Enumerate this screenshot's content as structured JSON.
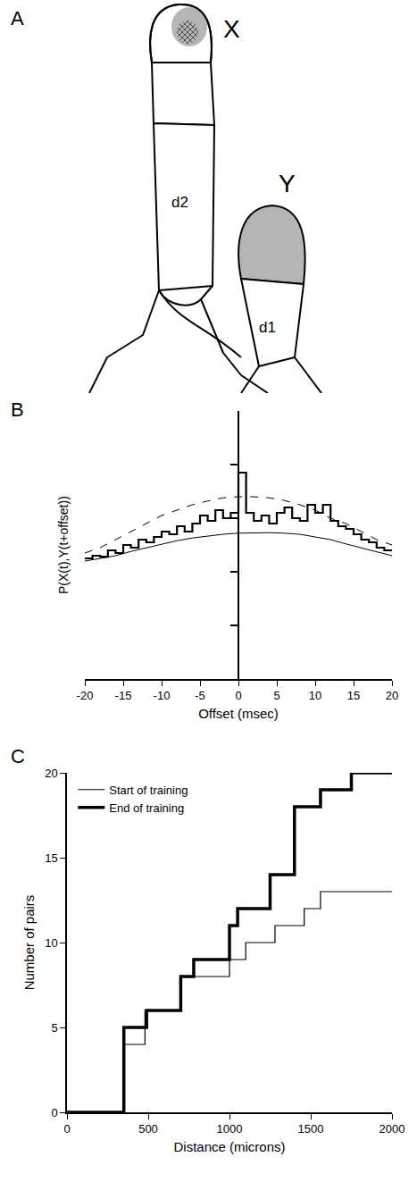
{
  "diagram": {
    "label": "A",
    "nodes": [
      {
        "label": "X"
      },
      {
        "label": "Y"
      },
      {
        "label": "d2"
      },
      {
        "label": "d1"
      }
    ]
  },
  "chart_data": [
    {
      "label": "B",
      "type": "line",
      "y_label": "P(X(t),Y(t+offset))",
      "x_label": "Offset (msec)",
      "xlim": [
        -20,
        20
      ],
      "xticks": [
        -20,
        -15,
        -10,
        -5,
        0,
        5,
        10,
        15,
        20
      ],
      "ylim": [
        0,
        5
      ],
      "yticks": [
        1,
        2,
        3,
        4
      ],
      "tick_labels": "x",
      "grid": false,
      "series": [
        {
          "type": "histogram",
          "color": "#000000",
          "line_style": "solid",
          "bins": [
            -20,
            -19,
            -18,
            -17,
            -16,
            -15,
            -14,
            -13,
            -12,
            -11,
            -10,
            -9,
            -8,
            -7,
            -6,
            -5,
            -4,
            -3,
            -2,
            -1,
            0,
            1,
            2,
            3,
            4,
            5,
            6,
            7,
            8,
            9,
            10,
            11,
            12,
            13,
            14,
            15,
            16,
            17,
            18,
            19,
            20
          ],
          "values": [
            2.25,
            2.3,
            2.28,
            2.4,
            2.35,
            2.5,
            2.45,
            2.6,
            2.55,
            2.65,
            2.75,
            2.7,
            2.85,
            2.75,
            2.9,
            3.05,
            2.95,
            3.15,
            3.0,
            3.1,
            3.85,
            3.1,
            2.95,
            3.05,
            2.9,
            3.1,
            3.2,
            3.0,
            2.95,
            3.25,
            3.1,
            3.25,
            2.95,
            2.85,
            2.8,
            2.7,
            2.6,
            2.55,
            2.45,
            2.4
          ]
        },
        {
          "type": "line",
          "color": "#000000",
          "line_style": "dashed",
          "x": [
            -20,
            -18,
            -16,
            -14,
            -12,
            -10,
            -8,
            -6,
            -4,
            -2,
            0,
            2,
            4,
            6,
            8,
            10,
            12,
            14,
            16,
            18,
            20
          ],
          "values": [
            2.35,
            2.45,
            2.6,
            2.75,
            2.9,
            3.05,
            3.15,
            3.25,
            3.32,
            3.38,
            3.4,
            3.4,
            3.38,
            3.33,
            3.25,
            3.15,
            3.0,
            2.9,
            2.75,
            2.6,
            2.5
          ]
        },
        {
          "type": "line",
          "color": "#000000",
          "line_style": "solid",
          "x": [
            -20,
            -18,
            -16,
            -14,
            -12,
            -10,
            -8,
            -6,
            -4,
            -2,
            0,
            2,
            4,
            6,
            8,
            10,
            12,
            14,
            16,
            18,
            20
          ],
          "values": [
            2.2,
            2.25,
            2.3,
            2.38,
            2.45,
            2.52,
            2.58,
            2.63,
            2.67,
            2.7,
            2.72,
            2.73,
            2.73,
            2.72,
            2.7,
            2.65,
            2.6,
            2.52,
            2.45,
            2.38,
            2.3
          ]
        }
      ]
    },
    {
      "label": "C",
      "type": "step",
      "x_label": "Distance (microns)",
      "y_label": "Number of pairs",
      "xlim": [
        0,
        2000
      ],
      "xticks": [
        0,
        500,
        1000,
        1500,
        2000
      ],
      "ylim": [
        0,
        20
      ],
      "yticks": [
        0,
        5,
        10,
        15,
        20
      ],
      "grid": false,
      "legend": "upper left",
      "series": [
        {
          "name": "Start of training",
          "color": "#000000",
          "line_style": "thin",
          "x": [
            0,
            350,
            480,
            700,
            1000,
            1100,
            1280,
            1460,
            1560,
            2000
          ],
          "values": [
            0,
            4,
            6,
            8,
            9,
            10,
            11,
            12,
            13,
            13
          ]
        },
        {
          "name": "End of training",
          "color": "#000000",
          "line_style": "thick",
          "x": [
            0,
            350,
            490,
            700,
            780,
            1000,
            1050,
            1250,
            1400,
            1560,
            1750,
            2000
          ],
          "values": [
            0,
            5,
            6,
            8,
            9,
            11,
            12,
            14,
            18,
            19,
            20,
            20
          ]
        }
      ]
    }
  ]
}
